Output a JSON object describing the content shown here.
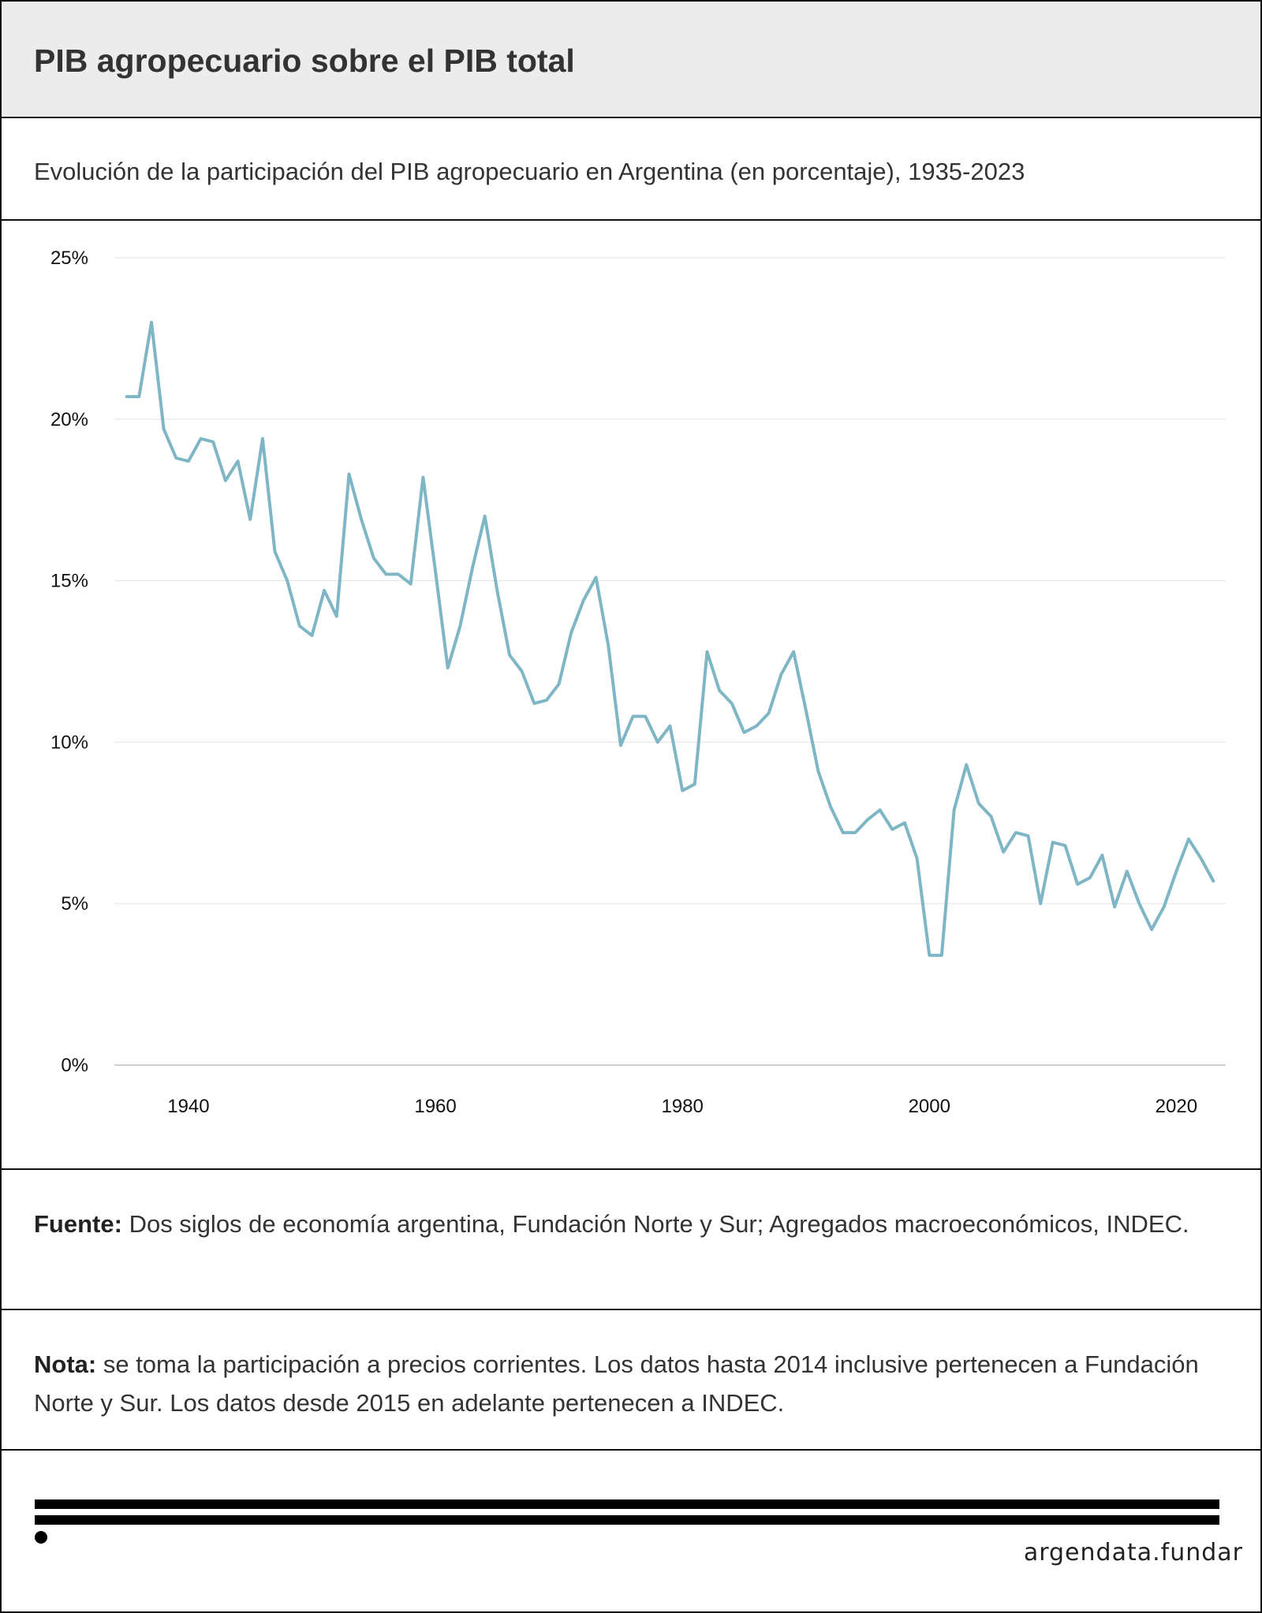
{
  "header": {
    "title": "PIB agropecuario sobre el PIB total",
    "subtitle": "Evolución de la participación del PIB agropecuario en Argentina (en porcentaje), 1935-2023"
  },
  "footer": {
    "source_label": "Fuente:",
    "source_text": "Dos siglos de economía argentina, Fundación Norte y Sur; Agregados macroeconómicos, INDEC.",
    "note_label": "Nota:",
    "note_text": "se toma la participación a precios corrientes. Los datos hasta 2014 inclusive pertenecen a Fundación Norte y Sur. Los datos desde 2015 en adelante pertenecen a INDEC."
  },
  "logo": {
    "text": "argendata.fundar"
  },
  "colors": {
    "line": "#7fb6c5",
    "grid": "#e3e3e3",
    "axis": "#bdbdbd"
  },
  "chart_data": {
    "type": "line",
    "title": "PIB agropecuario sobre el PIB total",
    "subtitle": "Evolución de la participación del PIB agropecuario en Argentina (en porcentaje), 1935-2023",
    "xlabel": "",
    "ylabel": "",
    "xlim": [
      1934,
      2024
    ],
    "ylim": [
      0,
      25
    ],
    "x_ticks": [
      1940,
      1960,
      1980,
      2000,
      2020
    ],
    "y_ticks": [
      0,
      5,
      10,
      15,
      20,
      25
    ],
    "y_tick_labels": [
      "0%",
      "5%",
      "10%",
      "15%",
      "20%",
      "25%"
    ],
    "grid": true,
    "x": [
      1935,
      1936,
      1937,
      1938,
      1939,
      1940,
      1941,
      1942,
      1943,
      1944,
      1945,
      1946,
      1947,
      1948,
      1949,
      1950,
      1951,
      1952,
      1953,
      1954,
      1955,
      1956,
      1957,
      1958,
      1959,
      1960,
      1961,
      1962,
      1963,
      1964,
      1965,
      1966,
      1967,
      1968,
      1969,
      1970,
      1971,
      1972,
      1973,
      1974,
      1975,
      1976,
      1977,
      1978,
      1979,
      1980,
      1981,
      1982,
      1983,
      1984,
      1985,
      1986,
      1987,
      1988,
      1989,
      1990,
      1991,
      1992,
      1993,
      1994,
      1995,
      1996,
      1997,
      1998,
      1999,
      2000,
      2001,
      2002,
      2003,
      2004,
      2005,
      2006,
      2007,
      2008,
      2009,
      2010,
      2011,
      2012,
      2013,
      2014,
      2015,
      2016,
      2017,
      2018,
      2019,
      2020,
      2021,
      2022,
      2023
    ],
    "series": [
      {
        "values": [
          20.7,
          20.7,
          23.0,
          19.7,
          18.8,
          18.7,
          19.4,
          19.3,
          18.1,
          18.7,
          16.9,
          19.4,
          15.9,
          15.0,
          13.6,
          13.3,
          14.7,
          13.9,
          18.3,
          16.9,
          15.7,
          15.2,
          15.2,
          14.9,
          18.2,
          15.3,
          12.3,
          13.6,
          15.4,
          17.0,
          14.7,
          12.7,
          12.2,
          11.2,
          11.3,
          11.8,
          13.4,
          14.4,
          15.1,
          13.0,
          9.9,
          10.8,
          10.8,
          10.0,
          10.5,
          8.5,
          8.7,
          12.8,
          11.6,
          11.2,
          10.3,
          10.5,
          10.9,
          12.1,
          12.8,
          11.0,
          9.1,
          8.0,
          7.2,
          7.2,
          7.6,
          7.9,
          7.3,
          7.5,
          6.4,
          3.4,
          3.4,
          7.9,
          9.3,
          8.1,
          7.7,
          6.6,
          7.2,
          7.1,
          5.0,
          6.9,
          6.8,
          5.6,
          5.8,
          6.5,
          4.9,
          6.0,
          5.0,
          4.2,
          4.9,
          6.0,
          7.0,
          6.4,
          5.7
        ]
      }
    ]
  }
}
